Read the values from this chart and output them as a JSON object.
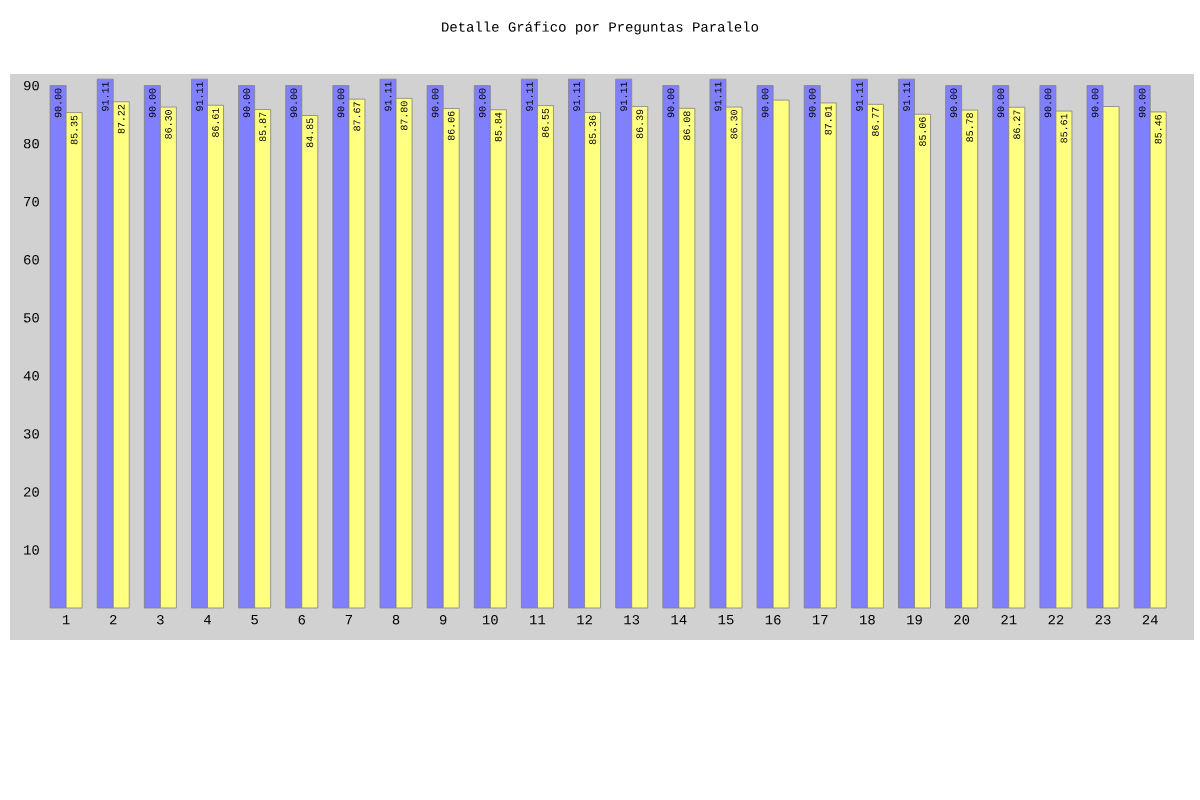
{
  "chart_data": {
    "type": "bar",
    "title": "Detalle Gráfico por Preguntas Paralelo",
    "categories": [
      "1",
      "2",
      "3",
      "4",
      "5",
      "6",
      "7",
      "8",
      "9",
      "10",
      "11",
      "12",
      "13",
      "14",
      "15",
      "16",
      "17",
      "18",
      "19",
      "20",
      "21",
      "22",
      "23",
      "24"
    ],
    "series": [
      {
        "color": "#8080ff",
        "values": [
          90.0,
          91.11,
          90.0,
          91.11,
          90.0,
          90.0,
          90.0,
          91.11,
          90.0,
          90.0,
          91.11,
          91.11,
          91.11,
          90.0,
          91.11,
          90.0,
          90.0,
          91.11,
          91.11,
          90.0,
          90.0,
          90.0,
          90.0,
          90.0
        ],
        "value_labels": [
          "90.00",
          "91.11",
          "90.00",
          "91.11",
          "90.00",
          "90.00",
          "90.00",
          "91.11",
          "90.00",
          "90.00",
          "91.11",
          "91.11",
          "91.11",
          "90.00",
          "91.11",
          "90.00",
          "90.00",
          "91.11",
          "91.11",
          "90.00",
          "90.00",
          "90.00",
          "90.00",
          "90.00"
        ]
      },
      {
        "color": "#ffff80",
        "values": [
          85.35,
          87.22,
          86.3,
          86.61,
          85.87,
          84.85,
          87.67,
          87.8,
          86.06,
          85.84,
          86.55,
          85.36,
          86.39,
          86.08,
          86.3,
          87.5,
          87.01,
          86.77,
          85.06,
          85.78,
          86.27,
          85.61,
          86.4,
          85.46
        ],
        "value_labels": [
          "85.35",
          "87.22",
          "86.30",
          "86.61",
          "85.87",
          "84.85",
          "87.67",
          "87.80",
          "86.06",
          "85.84",
          "86.55",
          "85.36",
          "86.39",
          "86.08",
          "86.30",
          null,
          "87.01",
          "86.77",
          "85.06",
          "85.78",
          "86.27",
          "85.61",
          null,
          "85.46"
        ]
      }
    ],
    "ylim": [
      0,
      92
    ],
    "yticks": [
      10,
      20,
      30,
      40,
      50,
      60,
      70,
      80,
      90
    ]
  }
}
